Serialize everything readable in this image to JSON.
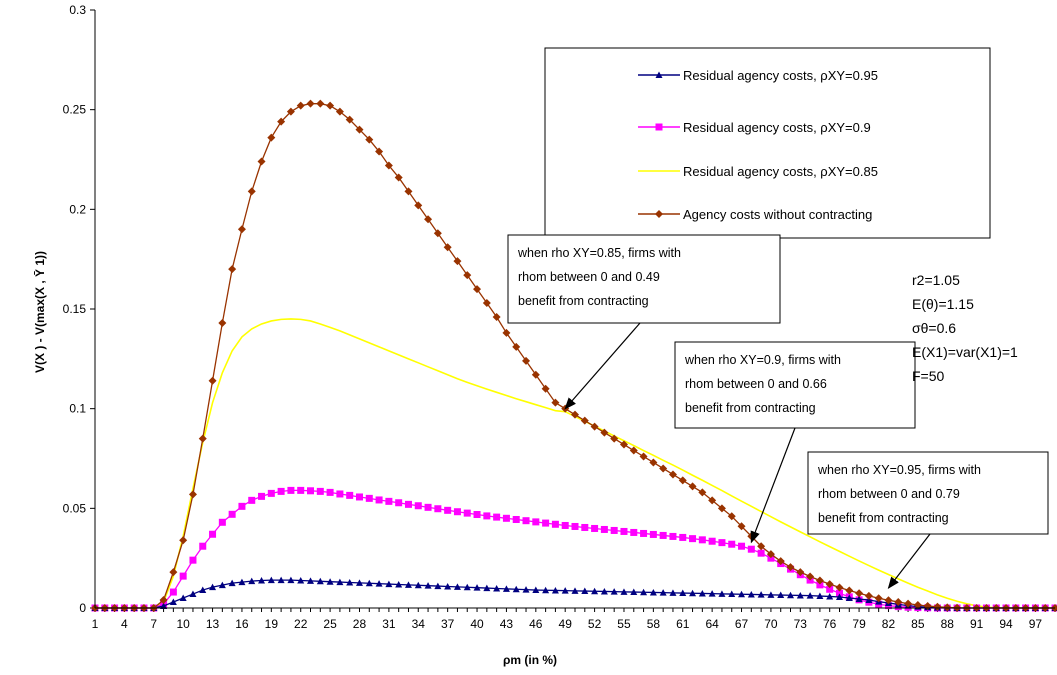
{
  "chart_data": {
    "type": "line",
    "title": "",
    "xlabel": "ρm (in %)",
    "ylabel": "V(X ) - V(max(X , Ȳ 1))",
    "ylim": [
      0,
      0.3
    ],
    "yticks": [
      0,
      0.05,
      0.1,
      0.15,
      0.2,
      0.25,
      0.3
    ],
    "ytick_labels": [
      "0",
      "0.05",
      "0.1",
      "0.15",
      "0.2",
      "0.25",
      "0.3"
    ],
    "x": [
      1,
      2,
      3,
      4,
      5,
      6,
      7,
      8,
      9,
      10,
      11,
      12,
      13,
      14,
      15,
      16,
      17,
      18,
      19,
      20,
      21,
      22,
      23,
      24,
      25,
      26,
      27,
      28,
      29,
      30,
      31,
      32,
      33,
      34,
      35,
      36,
      37,
      38,
      39,
      40,
      41,
      42,
      43,
      44,
      45,
      46,
      47,
      48,
      49,
      50,
      51,
      52,
      53,
      54,
      55,
      56,
      57,
      58,
      59,
      60,
      61,
      62,
      63,
      64,
      65,
      66,
      67,
      68,
      69,
      70,
      71,
      72,
      73,
      74,
      75,
      76,
      77,
      78,
      79,
      80,
      81,
      82,
      83,
      84,
      85,
      86,
      87,
      88,
      89,
      90,
      91,
      92,
      93,
      94,
      95,
      96,
      97,
      98,
      99
    ],
    "xtick_labels": [
      "1",
      "4",
      "7",
      "10",
      "13",
      "16",
      "19",
      "22",
      "25",
      "28",
      "31",
      "34",
      "37",
      "40",
      "43",
      "46",
      "49",
      "52",
      "55",
      "58",
      "61",
      "64",
      "67",
      "70",
      "73",
      "76",
      "79",
      "82",
      "85",
      "88",
      "91",
      "94",
      "97"
    ],
    "grid": false,
    "legend_position": "top-right",
    "series": [
      {
        "name": "Residual agency costs, ρXY=0.95",
        "marker": "triangle",
        "color": "#000080",
        "values": [
          0,
          0,
          0,
          0,
          0,
          0,
          0,
          0.001,
          0.003,
          0.005,
          0.007,
          0.009,
          0.0105,
          0.0115,
          0.0125,
          0.013,
          0.0135,
          0.0138,
          0.014,
          0.014,
          0.014,
          0.0138,
          0.0136,
          0.0134,
          0.0132,
          0.013,
          0.0128,
          0.0126,
          0.0124,
          0.0122,
          0.012,
          0.0118,
          0.0116,
          0.0114,
          0.0112,
          0.011,
          0.0108,
          0.0106,
          0.0104,
          0.0102,
          0.01,
          0.0098,
          0.0096,
          0.0094,
          0.0092,
          0.009,
          0.0089,
          0.0088,
          0.0087,
          0.0086,
          0.0085,
          0.0084,
          0.0083,
          0.0082,
          0.0081,
          0.008,
          0.0079,
          0.0078,
          0.0077,
          0.0076,
          0.0075,
          0.0074,
          0.0073,
          0.0072,
          0.0071,
          0.007,
          0.0069,
          0.0068,
          0.0067,
          0.0066,
          0.0065,
          0.0064,
          0.0063,
          0.0062,
          0.006,
          0.0058,
          0.0055,
          0.005,
          0.0045,
          0.004,
          0.0032,
          0.0025,
          0.0018,
          0.0012,
          0.0007,
          0.0004,
          0.0002,
          0.0001,
          0,
          0,
          0,
          0,
          0,
          0,
          0,
          0,
          0,
          0,
          0
        ]
      },
      {
        "name": "Residual agency costs, ρXY=0.9",
        "marker": "square",
        "color": "#ff00ff",
        "values": [
          0,
          0,
          0,
          0,
          0,
          0,
          0,
          0.002,
          0.008,
          0.016,
          0.024,
          0.031,
          0.037,
          0.043,
          0.047,
          0.051,
          0.054,
          0.056,
          0.0575,
          0.0585,
          0.059,
          0.059,
          0.0588,
          0.0585,
          0.058,
          0.0572,
          0.0565,
          0.0557,
          0.055,
          0.0542,
          0.0535,
          0.0528,
          0.052,
          0.0513,
          0.0505,
          0.0498,
          0.049,
          0.0483,
          0.0476,
          0.0469,
          0.0462,
          0.0456,
          0.045,
          0.0444,
          0.0438,
          0.0432,
          0.0426,
          0.042,
          0.0414,
          0.0409,
          0.0404,
          0.0399,
          0.0394,
          0.0389,
          0.0384,
          0.0379,
          0.0374,
          0.0369,
          0.0364,
          0.0359,
          0.0354,
          0.0348,
          0.0342,
          0.0335,
          0.0328,
          0.032,
          0.031,
          0.0295,
          0.0275,
          0.025,
          0.0223,
          0.0195,
          0.0167,
          0.014,
          0.0116,
          0.0094,
          0.0074,
          0.0056,
          0.0041,
          0.0029,
          0.0019,
          0.0012,
          0.0007,
          0.0004,
          0.0002,
          0.0001,
          0,
          0,
          0,
          0,
          0,
          0,
          0,
          0,
          0,
          0,
          0,
          0,
          0
        ]
      },
      {
        "name": "Residual agency costs, ρXY=0.85",
        "marker": "none",
        "color": "#ffff00",
        "values": [
          0,
          0,
          0,
          0,
          0,
          0,
          0,
          0.003,
          0.016,
          0.036,
          0.06,
          0.083,
          0.103,
          0.118,
          0.129,
          0.136,
          0.14,
          0.1425,
          0.144,
          0.1448,
          0.145,
          0.1448,
          0.144,
          0.1425,
          0.1408,
          0.139,
          0.137,
          0.135,
          0.133,
          0.131,
          0.129,
          0.127,
          0.125,
          0.123,
          0.121,
          0.119,
          0.117,
          0.115,
          0.1132,
          0.1115,
          0.1098,
          0.1082,
          0.1066,
          0.105,
          0.1035,
          0.102,
          0.1005,
          0.099,
          0.0985,
          0.0961,
          0.0937,
          0.0912,
          0.0888,
          0.0863,
          0.0839,
          0.0815,
          0.079,
          0.0766,
          0.0741,
          0.0717,
          0.0692,
          0.0666,
          0.0641,
          0.0615,
          0.0589,
          0.0562,
          0.0536,
          0.051,
          0.0484,
          0.0458,
          0.0432,
          0.0407,
          0.0382,
          0.0357,
          0.0332,
          0.0308,
          0.0284,
          0.026,
          0.0236,
          0.0213,
          0.019,
          0.0168,
          0.0146,
          0.0125,
          0.0104,
          0.0085,
          0.0066,
          0.0049,
          0.0034,
          0.0021,
          0.0011,
          0.0004,
          0.0001,
          0,
          0,
          0,
          0,
          0,
          0
        ]
      },
      {
        "name": "Agency costs without contracting",
        "marker": "diamond",
        "color": "#993300",
        "values": [
          0,
          0,
          0,
          0,
          0,
          0,
          0,
          0.004,
          0.018,
          0.034,
          0.057,
          0.085,
          0.114,
          0.143,
          0.17,
          0.19,
          0.209,
          0.224,
          0.236,
          0.244,
          0.249,
          0.252,
          0.253,
          0.253,
          0.252,
          0.249,
          0.245,
          0.24,
          0.235,
          0.229,
          0.222,
          0.216,
          0.209,
          0.202,
          0.195,
          0.188,
          0.181,
          0.174,
          0.167,
          0.16,
          0.153,
          0.146,
          0.138,
          0.131,
          0.124,
          0.117,
          0.11,
          0.103,
          0.1,
          0.097,
          0.094,
          0.091,
          0.088,
          0.085,
          0.082,
          0.079,
          0.076,
          0.073,
          0.07,
          0.067,
          0.064,
          0.061,
          0.058,
          0.054,
          0.05,
          0.046,
          0.041,
          0.036,
          0.031,
          0.027,
          0.0235,
          0.0205,
          0.018,
          0.0158,
          0.0138,
          0.012,
          0.0103,
          0.0088,
          0.0074,
          0.0061,
          0.0049,
          0.0039,
          0.003,
          0.0022,
          0.0015,
          0.001,
          0.0006,
          0.0003,
          0.0001,
          0,
          0,
          0,
          0,
          0,
          0,
          0,
          0,
          0,
          0
        ]
      }
    ],
    "annotations": [
      {
        "lines": [
          "when  rho XY=0.85, firms with",
          "rhom between 0 and 0.49",
          "benefit from contracting"
        ],
        "arrow_to": {
          "x": 49,
          "y": 0.1
        }
      },
      {
        "lines": [
          "when  rho XY=0.9, firms with",
          "rhom between 0 and 0.66",
          "benefit from contracting"
        ],
        "arrow_to": {
          "x": 68,
          "y": 0.033
        }
      },
      {
        "lines": [
          "when  rho XY=0.95, firms with",
          "rhom between 0 and 0.79",
          "benefit from contracting"
        ],
        "arrow_to": {
          "x": 82,
          "y": 0.01
        }
      }
    ],
    "parameters": [
      "r2=1.05",
      "E(θ)=1.15",
      "σθ=0.6",
      "E(X1)=var(X1)=1",
      "F=50"
    ]
  }
}
